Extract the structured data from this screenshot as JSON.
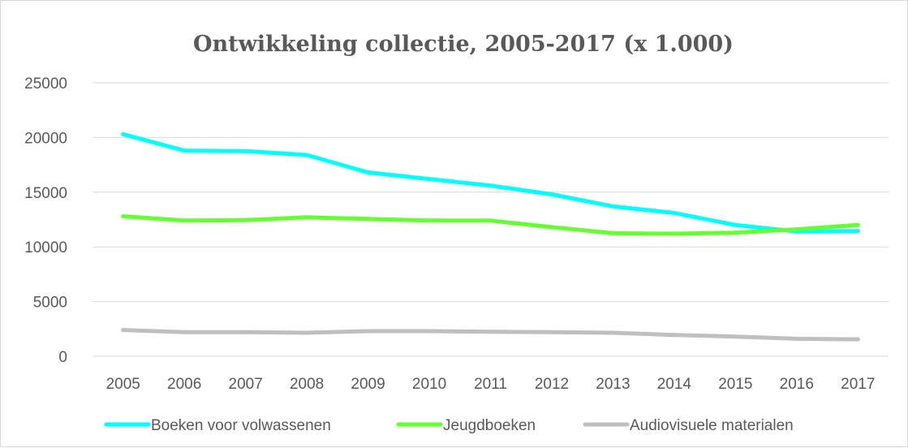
{
  "chart_data": {
    "type": "line",
    "title": "Ontwikkeling collectie, 2005-2017 (x 1.000)",
    "xlabel": "",
    "ylabel": "",
    "x": [
      "2005",
      "2006",
      "2007",
      "2008",
      "2009",
      "2010",
      "2011",
      "2012",
      "2013",
      "2014",
      "2015",
      "2016",
      "2017"
    ],
    "ylim": [
      0,
      25000
    ],
    "yticks": [
      "0",
      "5000",
      "10000",
      "15000",
      "20000",
      "25000"
    ],
    "grid": true,
    "legend_position": "bottom",
    "series": [
      {
        "name": "Boeken voor volwassenen",
        "color": "#00ffff",
        "values": [
          20300,
          18800,
          18750,
          18400,
          16800,
          16200,
          15600,
          14800,
          13700,
          13100,
          12000,
          11400,
          11450
        ]
      },
      {
        "name": "Jeugdboeken",
        "color": "#66ff33",
        "values": [
          12800,
          12400,
          12450,
          12700,
          12550,
          12400,
          12400,
          11800,
          11250,
          11200,
          11300,
          11600,
          12000
        ]
      },
      {
        "name": "Audiovisuele materialen",
        "color": "#bfbfbf",
        "values": [
          2400,
          2200,
          2200,
          2150,
          2300,
          2300,
          2250,
          2200,
          2150,
          1950,
          1800,
          1600,
          1550
        ]
      }
    ]
  }
}
